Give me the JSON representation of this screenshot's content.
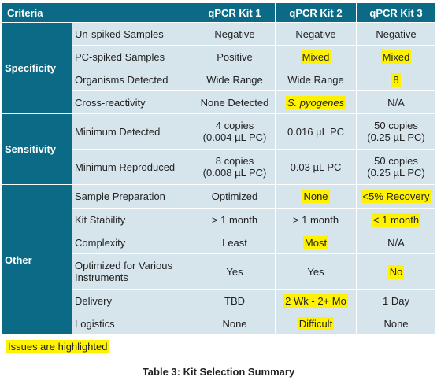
{
  "table": {
    "headers": [
      "Criteria",
      "qPCR Kit 1",
      "qPCR Kit 2",
      "qPCR Kit 3"
    ],
    "groups": {
      "specificity": "Specificity",
      "sensitivity": "Sensitivity",
      "other": "Other"
    },
    "rows": [
      {
        "label": "Un-spiked Samples",
        "kit1": "Negative",
        "kit2": "Negative",
        "kit3": "Negative"
      },
      {
        "label": "PC-spiked Samples",
        "kit1": "Positive",
        "kit2": "Mixed",
        "kit3": "Mixed"
      },
      {
        "label": "Organisms Detected",
        "kit1": "Wide Range",
        "kit2": "Wide Range",
        "kit3": "8"
      },
      {
        "label": "Cross-reactivity",
        "kit1": "None Detected",
        "kit2": "S. pyogenes",
        "kit3": "N/A"
      },
      {
        "label": "Minimum Detected",
        "kit1": [
          "4 copies",
          "(0.004 µL PC)"
        ],
        "kit2": "0.016 µL PC",
        "kit3": [
          "50 copies",
          "(0.25 µL PC)"
        ]
      },
      {
        "label": "Minimum Reproduced",
        "kit1": [
          "8 copies",
          "(0.008 µL PC)"
        ],
        "kit2": "0.03 µL PC",
        "kit3": [
          "50 copies",
          "(0.25 µL PC)"
        ]
      },
      {
        "label": "Sample Preparation",
        "kit1": "Optimized",
        "kit2": "None",
        "kit3": "<5% Recovery"
      },
      {
        "label": "Kit Stability",
        "kit1": "> 1 month",
        "kit2": "> 1 month",
        "kit3": "< 1 month"
      },
      {
        "label": "Complexity",
        "kit1": "Least",
        "kit2": "Most",
        "kit3": "N/A"
      },
      {
        "label": [
          "Optimized for Various",
          "Instruments"
        ],
        "kit1": "Yes",
        "kit2": "Yes",
        "kit3": "No"
      },
      {
        "label": "Delivery",
        "kit1": "TBD",
        "kit2": "2 Wk - 2+ Mo",
        "kit3": "1 Day"
      },
      {
        "label": "Logistics",
        "kit1": "None",
        "kit2": "Difficult",
        "kit3": "None"
      }
    ]
  },
  "note": "Issues are highlighted",
  "caption": "Table 3: Kit Selection Summary",
  "colors": {
    "header_bg": "#0b6b87",
    "cell_bg": "#d6e4ec",
    "highlight": "#fff200"
  }
}
